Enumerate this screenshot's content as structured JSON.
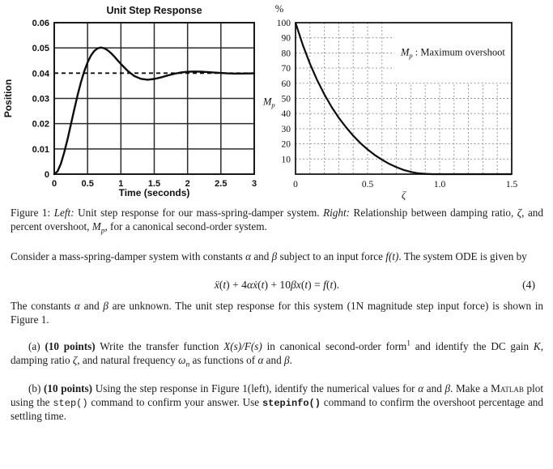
{
  "page": {
    "background": "#ffffff",
    "ink": "#1b1b1b"
  },
  "chart_data": [
    {
      "type": "line",
      "title": "Unit Step Response",
      "xlabel": "Time (seconds)",
      "ylabel": "Position",
      "xlim": [
        0,
        3
      ],
      "ylim": [
        0,
        0.06
      ],
      "xticks": [
        0,
        0.5,
        1,
        1.5,
        2,
        2.5,
        3
      ],
      "xtick_labels": [
        "0",
        "0.5",
        "1",
        "1.5",
        "2",
        "2.5",
        "3"
      ],
      "yticks": [
        0,
        0.01,
        0.02,
        0.03,
        0.04,
        0.05,
        0.06
      ],
      "ytick_labels": [
        "0",
        "0.01",
        "0.02",
        "0.03",
        "0.04",
        "0.05",
        "0.06"
      ],
      "grid": "solid",
      "reference_line": {
        "y": 0.04,
        "style": "dashed"
      },
      "series": [
        {
          "name": "unit step response",
          "x": [
            0,
            0.05,
            0.1,
            0.15,
            0.2,
            0.25,
            0.3,
            0.35,
            0.4,
            0.45,
            0.5,
            0.55,
            0.6,
            0.65,
            0.7,
            0.75,
            0.8,
            0.85,
            0.9,
            0.95,
            1.0,
            1.1,
            1.2,
            1.3,
            1.4,
            1.5,
            1.6,
            1.7,
            1.8,
            1.9,
            2.0,
            2.1,
            2.2,
            2.3,
            2.4,
            2.5,
            2.6,
            2.7,
            2.8,
            2.9,
            3.0
          ],
          "y": [
            0,
            0.00112,
            0.00415,
            0.00859,
            0.01393,
            0.01976,
            0.02562,
            0.03124,
            0.03633,
            0.0407,
            0.04432,
            0.04696,
            0.04881,
            0.04984,
            0.05016,
            0.04986,
            0.04909,
            0.04796,
            0.04662,
            0.04512,
            0.04365,
            0.04093,
            0.0389,
            0.03776,
            0.03742,
            0.03769,
            0.03832,
            0.03908,
            0.03977,
            0.04028,
            0.04057,
            0.04065,
            0.04058,
            0.04042,
            0.04023,
            0.04006,
            0.03993,
            0.03986,
            0.03984,
            0.03987,
            0.0399
          ]
        }
      ]
    },
    {
      "type": "line",
      "title": "",
      "xlabel": "ζ",
      "ylabel": "Mp",
      "ylabel_segments": [
        {
          "t": "M",
          "s": "it"
        },
        {
          "t": "p",
          "s": "subit"
        }
      ],
      "y_unit": "%",
      "xlim": [
        0,
        1.5
      ],
      "ylim": [
        0,
        100
      ],
      "xticks": [
        0,
        0.5,
        1.0,
        1.5
      ],
      "xtick_labels": [
        "0",
        "0.5",
        "1.0",
        "1.5"
      ],
      "yticks": [
        10,
        20,
        30,
        40,
        50,
        60,
        70,
        80,
        90,
        100
      ],
      "ytick_labels": [
        "10",
        "20",
        "30",
        "40",
        "50",
        "60",
        "70",
        "80",
        "90",
        "100"
      ],
      "grid": "dashed",
      "grid_step_x": 0.1,
      "grid_step_y": 10,
      "annotation": {
        "box": {
          "x0": 0.685,
          "x1": 1.5,
          "y0": 60,
          "y1": 100
        },
        "segments": [
          {
            "t": "M",
            "s": "it"
          },
          {
            "t": "p",
            "s": "subit"
          },
          {
            "t": " : Maximum overshoot",
            "s": "rm"
          }
        ]
      },
      "x": [
        0,
        0.05,
        0.1,
        0.15,
        0.2,
        0.25,
        0.3,
        0.35,
        0.4,
        0.45,
        0.5,
        0.55,
        0.6,
        0.65,
        0.7,
        0.75,
        0.8,
        0.85,
        0.9,
        0.95,
        1.0,
        1.1,
        1.2,
        1.3,
        1.4,
        1.5
      ],
      "y": [
        100,
        85.4,
        72.9,
        62.1,
        52.7,
        44.4,
        37.2,
        31.0,
        25.4,
        20.5,
        16.3,
        12.6,
        9.5,
        6.8,
        4.6,
        2.8,
        1.5,
        0.6,
        0.2,
        0,
        0,
        0,
        0,
        0,
        0,
        0
      ]
    }
  ],
  "text": {
    "caption": {
      "segments": [
        {
          "t": "Figure 1: ",
          "s": "rm"
        },
        {
          "t": "Left:",
          "s": "it"
        },
        {
          "t": " Unit step response for our mass-spring-damper system. ",
          "s": "rm"
        },
        {
          "t": "Right:",
          "s": "it"
        },
        {
          "t": " Relationship between damping ratio, ",
          "s": "rm"
        },
        {
          "t": "ζ",
          "s": "it"
        },
        {
          "t": ", and percent overshoot, ",
          "s": "rm"
        },
        {
          "t": "M",
          "s": "it"
        },
        {
          "t": "p",
          "s": "subit"
        },
        {
          "t": ", for a canonical second-order system.",
          "s": "rm"
        }
      ]
    },
    "intro": {
      "segments": [
        {
          "t": "Consider a mass-spring-damper system with constants ",
          "s": "rm"
        },
        {
          "t": "α",
          "s": "it"
        },
        {
          "t": " and ",
          "s": "rm"
        },
        {
          "t": "β",
          "s": "it"
        },
        {
          "t": " subject to an input force ",
          "s": "rm"
        },
        {
          "t": "f(t)",
          "s": "it"
        },
        {
          "t": ". The system ODE is given by",
          "s": "rm"
        }
      ]
    },
    "equation": {
      "segments": [
        {
          "t": "ẍ",
          "s": "it"
        },
        {
          "t": "(",
          "s": "rm"
        },
        {
          "t": "t",
          "s": "it"
        },
        {
          "t": ") + 4",
          "s": "rm"
        },
        {
          "t": "αẋ",
          "s": "it"
        },
        {
          "t": "(",
          "s": "rm"
        },
        {
          "t": "t",
          "s": "it"
        },
        {
          "t": ") + 10",
          "s": "rm"
        },
        {
          "t": "βx",
          "s": "it"
        },
        {
          "t": "(",
          "s": "rm"
        },
        {
          "t": "t",
          "s": "it"
        },
        {
          "t": ") = ",
          "s": "rm"
        },
        {
          "t": "f",
          "s": "it"
        },
        {
          "t": "(",
          "s": "rm"
        },
        {
          "t": "t",
          "s": "it"
        },
        {
          "t": ").",
          "s": "rm"
        }
      ],
      "number": "(4)"
    },
    "after_eq": {
      "segments": [
        {
          "t": "The constants ",
          "s": "rm"
        },
        {
          "t": "α",
          "s": "it"
        },
        {
          "t": " and ",
          "s": "rm"
        },
        {
          "t": "β",
          "s": "it"
        },
        {
          "t": " are unknown. The unit step response for this system (1N magnitude step input force) is shown in Figure 1.",
          "s": "rm"
        }
      ]
    },
    "item_a": {
      "segments": [
        {
          "t": "(a) ",
          "s": "rm"
        },
        {
          "t": "(10 points)",
          "s": "b"
        },
        {
          "t": " Write the transfer function ",
          "s": "rm"
        },
        {
          "t": "X(s)/F(s)",
          "s": "it"
        },
        {
          "t": " in canonical second-order form",
          "s": "rm"
        },
        {
          "t": "1",
          "s": "sup"
        },
        {
          "t": " and identify the DC gain ",
          "s": "rm"
        },
        {
          "t": "K",
          "s": "it"
        },
        {
          "t": ", damping ratio ",
          "s": "rm"
        },
        {
          "t": "ζ",
          "s": "it"
        },
        {
          "t": ", and natural frequency ",
          "s": "rm"
        },
        {
          "t": "ω",
          "s": "it"
        },
        {
          "t": "n",
          "s": "subit"
        },
        {
          "t": " as functions of ",
          "s": "rm"
        },
        {
          "t": "α",
          "s": "it"
        },
        {
          "t": " and ",
          "s": "rm"
        },
        {
          "t": "β",
          "s": "it"
        },
        {
          "t": ".",
          "s": "rm"
        }
      ]
    },
    "item_b": {
      "segments": [
        {
          "t": "(b) ",
          "s": "rm"
        },
        {
          "t": "(10 points)",
          "s": "b"
        },
        {
          "t": " Using the step response in Figure 1(left), identify the numerical values for ",
          "s": "rm"
        },
        {
          "t": "α",
          "s": "it"
        },
        {
          "t": " and ",
          "s": "rm"
        },
        {
          "t": "β",
          "s": "it"
        },
        {
          "t": ". Make a ",
          "s": "rm"
        },
        {
          "t": "Matlab",
          "s": "sc"
        },
        {
          "t": " plot using the ",
          "s": "rm"
        },
        {
          "t": "step()",
          "s": "mono"
        },
        {
          "t": " command to confirm your answer. Use ",
          "s": "rm"
        },
        {
          "t": "stepinfo()",
          "s": "bmono"
        },
        {
          "t": " command to confirm the overshoot percentage and settling time.",
          "s": "rm"
        }
      ]
    }
  }
}
